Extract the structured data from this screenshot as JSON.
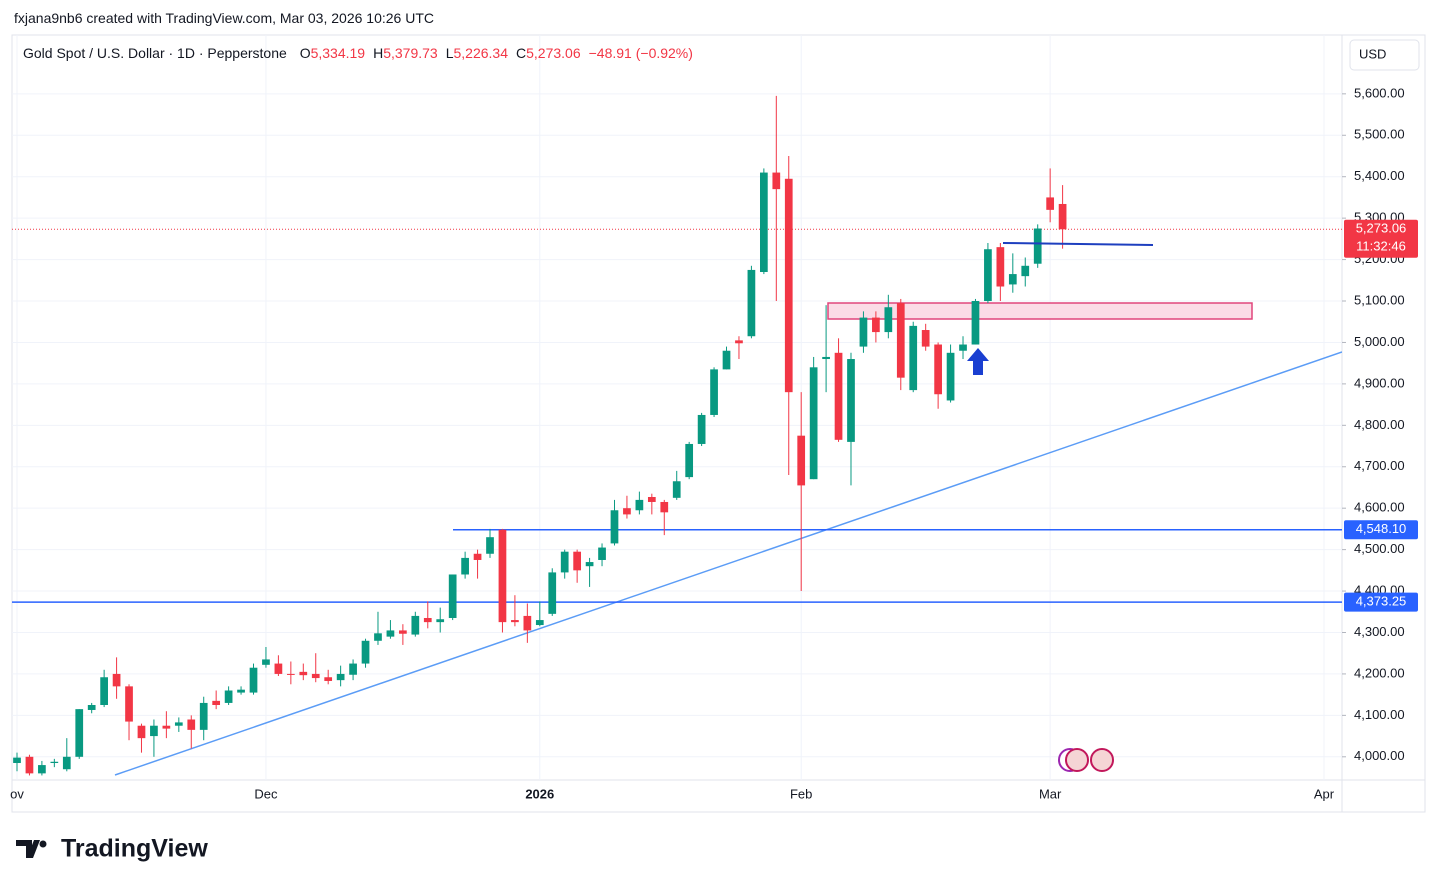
{
  "watermark": "fxjana9nb6 created with TradingView.com, Mar 03, 2026 10:26 UTC",
  "logo": "TradingView",
  "chart_data": {
    "type": "candlestick",
    "title": "Gold Spot / U.S. Dollar · 1D · Pepperstone",
    "ohlc_legend": [
      {
        "label": "O",
        "value": "5,334.19"
      },
      {
        "label": "H",
        "value": "5,379.73"
      },
      {
        "label": "L",
        "value": "5,226.34"
      },
      {
        "label": "C",
        "value": "5,273.06"
      }
    ],
    "change": "−48.91 (−0.92%)",
    "currency": "USD",
    "up_color": "#089981",
    "down_color": "#f23645",
    "categories": [
      "ov",
      null,
      null,
      null,
      null,
      null,
      null,
      null,
      null,
      null,
      null,
      null,
      null,
      null,
      null,
      null,
      null,
      null,
      null,
      null,
      "Dec",
      null,
      null,
      null,
      null,
      null,
      null,
      null,
      null,
      null,
      null,
      null,
      null,
      null,
      null,
      null,
      null,
      null,
      null,
      null,
      null,
      null,
      "2026",
      null,
      null,
      null,
      null,
      null,
      null,
      null,
      null,
      null,
      null,
      null,
      null,
      null,
      null,
      null,
      null,
      null,
      null,
      null,
      null,
      "Feb",
      null,
      null,
      null,
      null,
      null,
      null,
      null,
      null,
      null,
      null,
      null,
      null,
      null,
      null,
      null,
      null,
      null,
      null,
      null,
      "Mar",
      null,
      null,
      null,
      null,
      null,
      null,
      null,
      null,
      null,
      null,
      null,
      null,
      null,
      null,
      null,
      null,
      null,
      null,
      null,
      null,
      null,
      "Apr"
    ],
    "open": [
      3985,
      4000,
      3960,
      3985,
      3970,
      4000,
      4113,
      4125,
      4200,
      4170,
      4075,
      4050,
      4075,
      4075,
      4090,
      4065,
      4135,
      4130,
      4155,
      4155,
      4222,
      4225,
      4200,
      4205,
      4200,
      4192,
      4185,
      4198,
      4225,
      4280,
      4290,
      4305,
      4295,
      4335,
      4325,
      4335,
      4440,
      4490,
      4490,
      4548,
      4330,
      4340,
      4318,
      4345,
      4445,
      4495,
      4460,
      4475,
      4515,
      4600,
      4595,
      4627,
      4615,
      4625,
      4675,
      4755,
      4825,
      4935,
      5005,
      5015,
      5170,
      5410,
      5395,
      4775,
      4670,
      4960,
      4975,
      4760,
      4990,
      5060,
      5025,
      5095,
      4885,
      5030,
      4995,
      4860,
      4980,
      4995,
      5100,
      5230,
      5140,
      5160,
      5190,
      5350,
      5334.19,
      null,
      null,
      null,
      null,
      null,
      null,
      null,
      null,
      null,
      null,
      null,
      null,
      null,
      null,
      null,
      null,
      null,
      null,
      null,
      null,
      null
    ],
    "high": [
      4010,
      4005,
      3990,
      3995,
      4045,
      4115,
      4130,
      4210,
      4240,
      4175,
      4080,
      4090,
      4110,
      4095,
      4100,
      4145,
      4160,
      4170,
      4170,
      4225,
      4265,
      4245,
      4230,
      4225,
      4250,
      4210,
      4220,
      4235,
      4285,
      4350,
      4330,
      4320,
      4350,
      4375,
      4360,
      4440,
      4495,
      4500,
      4550,
      4550,
      4390,
      4370,
      4375,
      4455,
      4500,
      4500,
      4480,
      4515,
      4620,
      4630,
      4640,
      4635,
      4620,
      4690,
      4760,
      4830,
      4940,
      4990,
      5015,
      5185,
      5420,
      5595,
      5450,
      4880,
      4965,
      5090,
      5010,
      4975,
      5075,
      5075,
      5115,
      5105,
      5050,
      5045,
      5000,
      4995,
      5015,
      5105,
      5240,
      5240,
      5215,
      5205,
      5285,
      5420,
      5379.73,
      null,
      null,
      null,
      null,
      null,
      null,
      null,
      null,
      null,
      null,
      null,
      null,
      null,
      null,
      null,
      null,
      null,
      null,
      null,
      null,
      null
    ],
    "low": [
      3965,
      3955,
      3955,
      3975,
      3965,
      3995,
      4105,
      4120,
      4140,
      4040,
      4010,
      4000,
      4045,
      4060,
      4020,
      4040,
      4115,
      4125,
      4150,
      4150,
      4215,
      4195,
      4175,
      4185,
      4180,
      4175,
      4170,
      4185,
      4215,
      4270,
      4285,
      4270,
      4290,
      4310,
      4300,
      4330,
      4430,
      4430,
      4480,
      4300,
      4315,
      4275,
      4315,
      4340,
      4430,
      4420,
      4410,
      4460,
      4510,
      4575,
      4585,
      4585,
      4535,
      4620,
      4670,
      4750,
      4820,
      4935,
      4960,
      5010,
      5165,
      5100,
      4680,
      4400,
      4670,
      4880,
      4760,
      4655,
      4975,
      5000,
      5010,
      4885,
      4880,
      4980,
      4840,
      4855,
      4960,
      4995,
      5095,
      5100,
      5120,
      5135,
      5180,
      5290,
      5226.34,
      null,
      null,
      null,
      null,
      null,
      null,
      null,
      null,
      null,
      null,
      null,
      null,
      null,
      null,
      null,
      null,
      null,
      null,
      null,
      null,
      null
    ],
    "close": [
      3998,
      3960,
      3980,
      3988,
      4000,
      4115,
      4125,
      4192,
      4170,
      4085,
      4045,
      4075,
      4068,
      4083,
      4065,
      4130,
      4125,
      4160,
      4162,
      4215,
      4235,
      4200,
      4198,
      4197,
      4190,
      4183,
      4200,
      4225,
      4280,
      4298,
      4305,
      4297,
      4340,
      4325,
      4332,
      4440,
      4480,
      4475,
      4530,
      4325,
      4325,
      4305,
      4330,
      4445,
      4495,
      4450,
      4470,
      4505,
      4595,
      4585,
      4620,
      4615,
      4590,
      4665,
      4755,
      4825,
      4935,
      4980,
      4998,
      5175,
      5410,
      5370,
      4880,
      4655,
      4940,
      4965,
      4765,
      4960,
      5060,
      5025,
      5085,
      4915,
      5040,
      4990,
      4875,
      4975,
      4995,
      5100,
      5225,
      5135,
      5165,
      5185,
      5275,
      5320,
      5273.06,
      null,
      null,
      null,
      null,
      null,
      null,
      null,
      null,
      null,
      null,
      null,
      null,
      null,
      null,
      null,
      null,
      null,
      null,
      null,
      null,
      null
    ],
    "ylim": [
      3944,
      5742
    ],
    "yticks": [
      {
        "value": 4000,
        "label": "4,000.00"
      },
      {
        "value": 4100,
        "label": "4,100.00"
      },
      {
        "value": 4200,
        "label": "4,200.00"
      },
      {
        "value": 4300,
        "label": "4,300.00"
      },
      {
        "value": 4400,
        "label": "4,400.00"
      },
      {
        "value": 4500,
        "label": "4,500.00"
      },
      {
        "value": 4600,
        "label": "4,600.00"
      },
      {
        "value": 4700,
        "label": "4,700.00"
      },
      {
        "value": 4800,
        "label": "4,800.00"
      },
      {
        "value": 4900,
        "label": "4,900.00"
      },
      {
        "value": 5000,
        "label": "5,000.00"
      },
      {
        "value": 5100,
        "label": "5,100.00"
      },
      {
        "value": 5200,
        "label": "5,200.00"
      },
      {
        "value": 5300,
        "label": "5,300.00"
      },
      {
        "value": 5400,
        "label": "5,400.00"
      },
      {
        "value": 5500,
        "label": "5,500.00"
      },
      {
        "value": 5600,
        "label": "5,600.00"
      }
    ],
    "grid": true,
    "price_lines": [
      {
        "value": 5273.06,
        "label": "5,273.06",
        "countdown": "11:32:46",
        "color": "#f23645",
        "style": "dotted"
      },
      {
        "value": 4548.1,
        "label": "4,548.10",
        "color": "#2962ff",
        "style": "solid"
      },
      {
        "value": 4373.25,
        "label": "4,373.25",
        "color": "#2962ff",
        "style": "solid"
      }
    ]
  }
}
